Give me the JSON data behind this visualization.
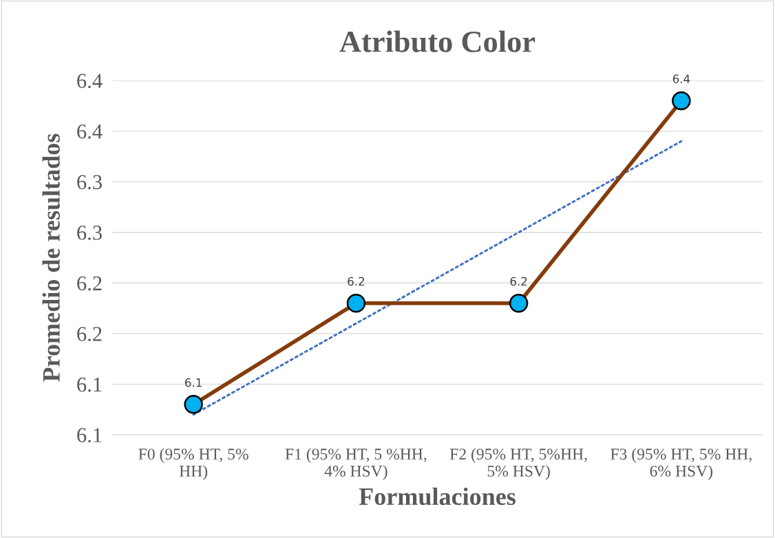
{
  "chart_data": {
    "type": "line",
    "title": "Atributo Color",
    "xlabel": "Formulaciones",
    "ylabel": "Promedio de resultados",
    "categories": [
      "F0 (95% HT, 5%\nHH)",
      "F1 (95% HT, 5 %HH,\n4% HSV)",
      "F2 (95% HT, 5%HH,\n5% HSV)",
      "F3 (95% HT, 5% HH,\n6% HSV)"
    ],
    "series": [
      {
        "color": "#843c0c",
        "values": [
          6.08,
          6.18,
          6.18,
          6.38
        ],
        "value_labels": [
          "6.1",
          "6.2",
          "6.2",
          "6.4"
        ],
        "marker": "circle",
        "line_style": "solid"
      },
      {
        "color": "#4472c4",
        "values": [
          6.07,
          6.16,
          6.25,
          6.34
        ],
        "marker": "none",
        "line_style": "dotted"
      }
    ],
    "ylim": [
      6.05,
      6.4
    ],
    "yticks": [
      {
        "value": 6.05,
        "label": "6.1"
      },
      {
        "value": 6.1,
        "label": "6.1"
      },
      {
        "value": 6.15,
        "label": "6.2"
      },
      {
        "value": 6.2,
        "label": "6.2"
      },
      {
        "value": 6.25,
        "label": "6.3"
      },
      {
        "value": 6.3,
        "label": "6.3"
      },
      {
        "value": 6.35,
        "label": "6.4"
      },
      {
        "value": 6.4,
        "label": "6.4"
      }
    ],
    "grid": "y",
    "legend": false
  }
}
